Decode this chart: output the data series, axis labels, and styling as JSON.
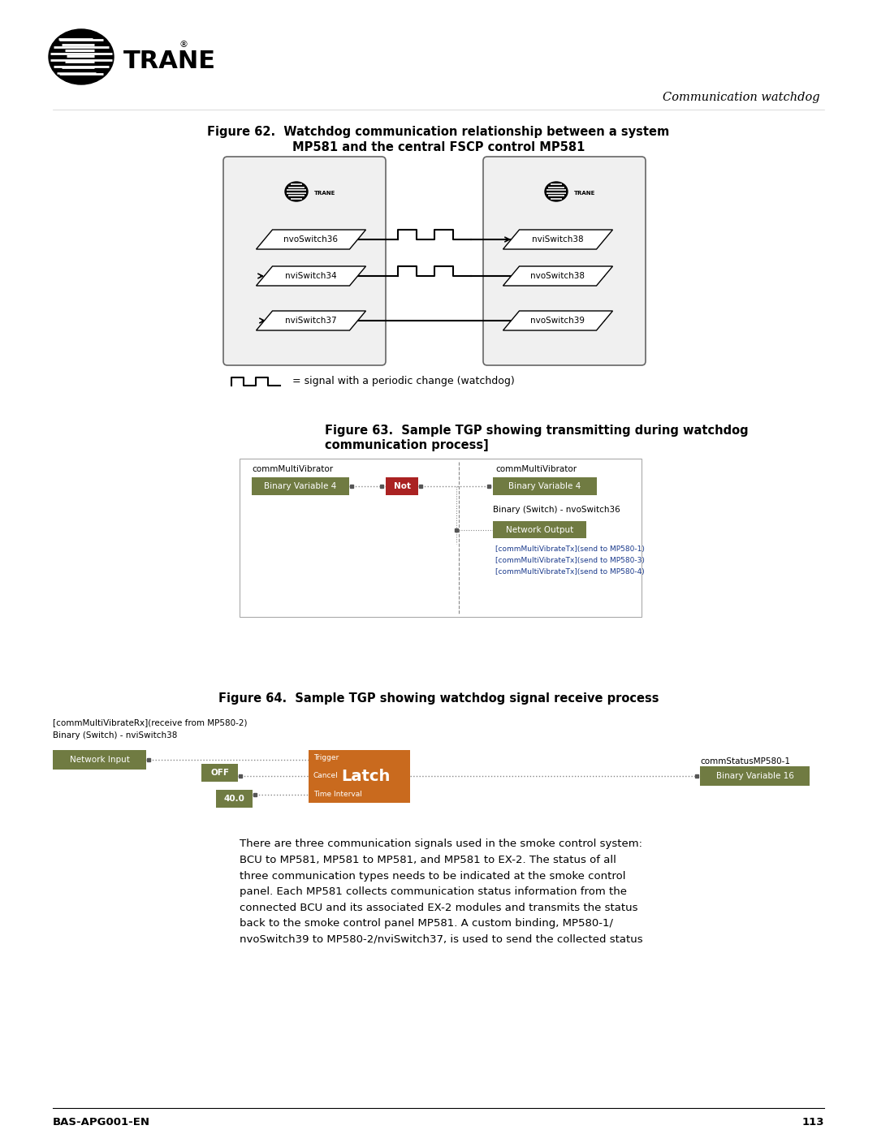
{
  "page_title": "Communication watchdog",
  "page_number": "113",
  "footer_left": "BAS-APG001-EN",
  "fig62_title_1": "Figure 62.  Watchdog communication relationship between a system",
  "fig62_title_2": "MP581 and the central FSCP control MP581",
  "fig62_switches_left": [
    "nvoSwitch36",
    "nviSwitch34",
    "nviSwitch37"
  ],
  "fig62_switches_right": [
    "nviSwitch38",
    "nvoSwitch38",
    "nvoSwitch39"
  ],
  "fig62_signal_label": "= signal with a periodic change (watchdog)",
  "fig63_title_1": "Figure 63.  Sample TGP showing transmitting during watchdog",
  "fig63_title_2": "communication process]",
  "fig63_left_label": "commMultiVibrator",
  "fig63_right_label": "commMultiVibrator",
  "fig63_box1": "Binary Variable 4",
  "fig63_not": "Not",
  "fig63_box2": "Binary Variable 4",
  "fig63_switch_label": "Binary (Switch) - nvoSwitch36",
  "fig63_net_out": "Network Output",
  "fig63_lines": [
    "[commMultiVibrateTx](send to MP580-1)",
    "[commMultiVibrateTx](send to MP580-3)",
    "[commMultiVibrateTx](send to MP580-4)"
  ],
  "fig64_title": "Figure 64.  Sample TGP showing watchdog signal receive process",
  "fig64_rx_label": "[commMultiVibrateRx](receive from MP580-2)",
  "fig64_switch_label": "Binary (Switch) - nviSwitch38",
  "fig64_net_in": "Network Input",
  "fig64_off": "OFF",
  "fig64_value": "40.0",
  "fig64_latch": "Latch",
  "fig64_trigger": "Trigger",
  "fig64_cancel": "Cancel",
  "fig64_time_interval": "Time Interval",
  "fig64_comm_label": "commStatusMP580-1",
  "fig64_bv": "Binary Variable 16",
  "body_text_lines": [
    "There are three communication signals used in the smoke control system:",
    "BCU to MP581, MP581 to MP581, and MP581 to EX-2. The status of all",
    "three communication types needs to be indicated at the smoke control",
    "panel. Each MP581 collects communication status information from the",
    "connected BCU and its associated EX-2 modules and transmits the status",
    "back to the smoke control panel MP581. A custom binding, MP580-1/",
    "nvoSwitch39 to MP580-2/nviSwitch37, is used to send the collected status"
  ],
  "bg_color": "#ffffff",
  "box_green_dark": "#707b42",
  "box_orange": "#c96a1e",
  "box_red": "#aa2222",
  "text_color": "#000000",
  "blue_text": "#1a3a8c",
  "controller_fill": "#f0f0f0",
  "controller_edge": "#666666"
}
